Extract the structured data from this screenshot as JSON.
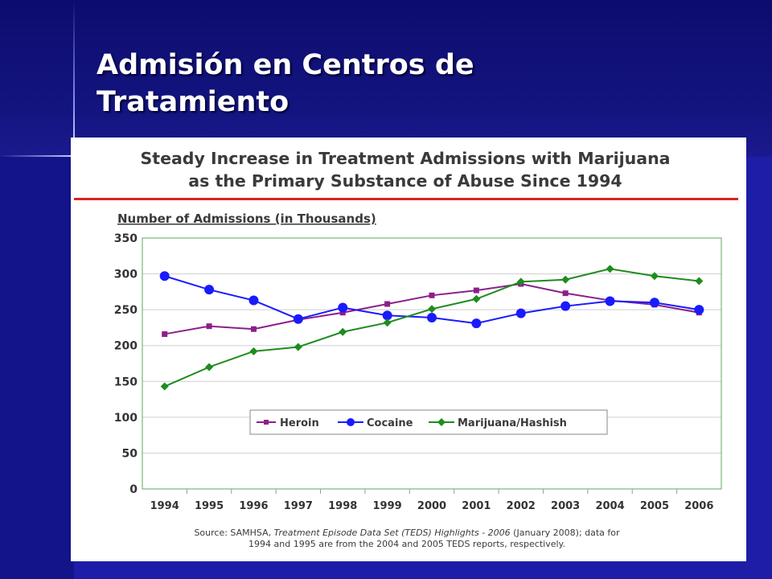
{
  "slide": {
    "title_line1": "Admisión en Centros de",
    "title_line2": "Tratamiento"
  },
  "colors": {
    "heroin": "#8b1f8b",
    "cocaine": "#1a1aff",
    "marijuana": "#1e8c1e",
    "rule": "#e02020",
    "grid": "#cfcfcf",
    "plot_border": "#79b879"
  },
  "chart_data": {
    "type": "line",
    "title_line1": "Steady Increase in Treatment Admissions with Marijuana",
    "title_line2": "as the Primary Substance of Abuse Since 1994",
    "ylabel": "Number of Admissions (in Thousands)",
    "xlabel": "",
    "ylim": [
      0,
      350
    ],
    "yticks": [
      0,
      50,
      100,
      150,
      200,
      250,
      300,
      350
    ],
    "grid": true,
    "legend_position": "bottom-center",
    "x": [
      "1994",
      "1995",
      "1996",
      "1997",
      "1998",
      "1999",
      "2000",
      "2001",
      "2002",
      "2003",
      "2004",
      "2005",
      "2006"
    ],
    "series": [
      {
        "name": "Heroin",
        "marker": "square",
        "values": [
          216,
          227,
          223,
          236,
          246,
          258,
          270,
          277,
          286,
          273,
          263,
          257,
          246
        ]
      },
      {
        "name": "Cocaine",
        "marker": "circle",
        "values": [
          297,
          278,
          263,
          237,
          253,
          242,
          239,
          231,
          245,
          255,
          262,
          260,
          250
        ]
      },
      {
        "name": "Marijuana/Hashish",
        "marker": "diamond",
        "values": [
          143,
          170,
          192,
          198,
          219,
          232,
          251,
          265,
          289,
          292,
          307,
          297,
          290
        ]
      }
    ],
    "source_prefix": "Source:  SAMHSA, ",
    "source_italic": "Treatment Episode Data Set (TEDS) Highlights - 2006",
    "source_suffix": " (January 2008); data for",
    "source_line2": "1994 and 1995 are from the 2004 and 2005 TEDS reports, respectively."
  }
}
